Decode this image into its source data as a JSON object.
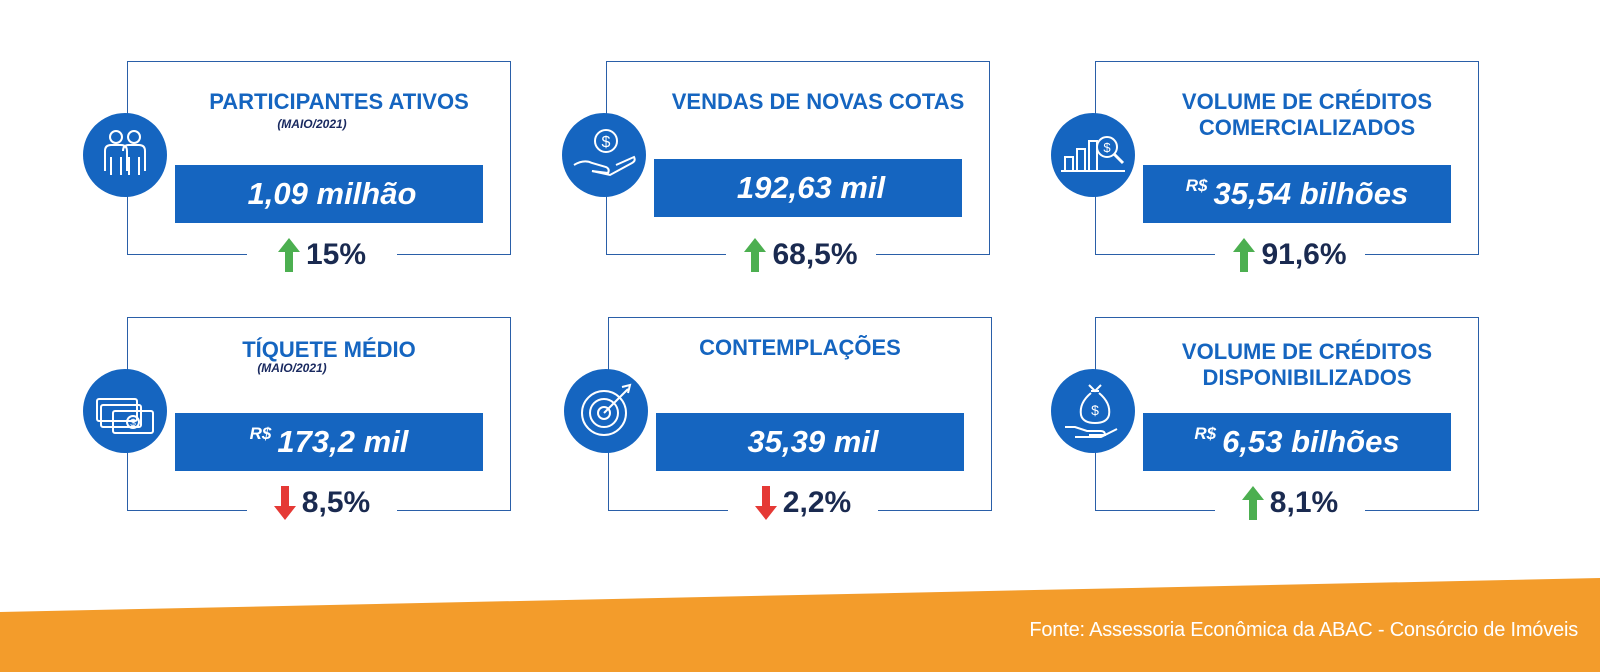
{
  "cards": [
    {
      "title": "PARTICIPANTES ATIVOS",
      "subtitle": "(MAIO/2021)",
      "currency": "",
      "value": "1,09 milhão",
      "change": "15%",
      "direction": "up",
      "icon": "people-icon"
    },
    {
      "title": "VENDAS DE NOVAS COTAS",
      "subtitle": "",
      "currency": "",
      "value": "192,63 mil",
      "change": "68,5%",
      "direction": "up",
      "icon": "hand-coin-icon"
    },
    {
      "title": "VOLUME DE CRÉDITOS COMERCIALIZADOS",
      "subtitle": "",
      "currency": "R$",
      "value": "35,54 bilhões",
      "change": "91,6%",
      "direction": "up",
      "icon": "chart-magnifier-icon"
    },
    {
      "title": "TÍQUETE MÉDIO",
      "subtitle": "(MAIO/2021)",
      "currency": "R$",
      "value": "173,2 mil",
      "change": "8,5%",
      "direction": "down",
      "icon": "money-stack-icon"
    },
    {
      "title": "CONTEMPLAÇÕES",
      "subtitle": "",
      "currency": "",
      "value": "35,39 mil",
      "change": "2,2%",
      "direction": "down",
      "icon": "target-icon"
    },
    {
      "title": "VOLUME DE CRÉDITOS DISPONIBILIZADOS",
      "subtitle": "",
      "currency": "R$",
      "value": "6,53 bilhões",
      "change": "8,1%",
      "direction": "up",
      "icon": "money-bag-hand-icon"
    }
  ],
  "footer": {
    "source": "Fonte: Assessoria Econômica da ABAC - Consórcio de Imóveis"
  },
  "colors": {
    "primary_blue": "#1565c0",
    "up_arrow": "#4caf50",
    "down_arrow": "#e53935",
    "banner": "#f39c2b"
  }
}
